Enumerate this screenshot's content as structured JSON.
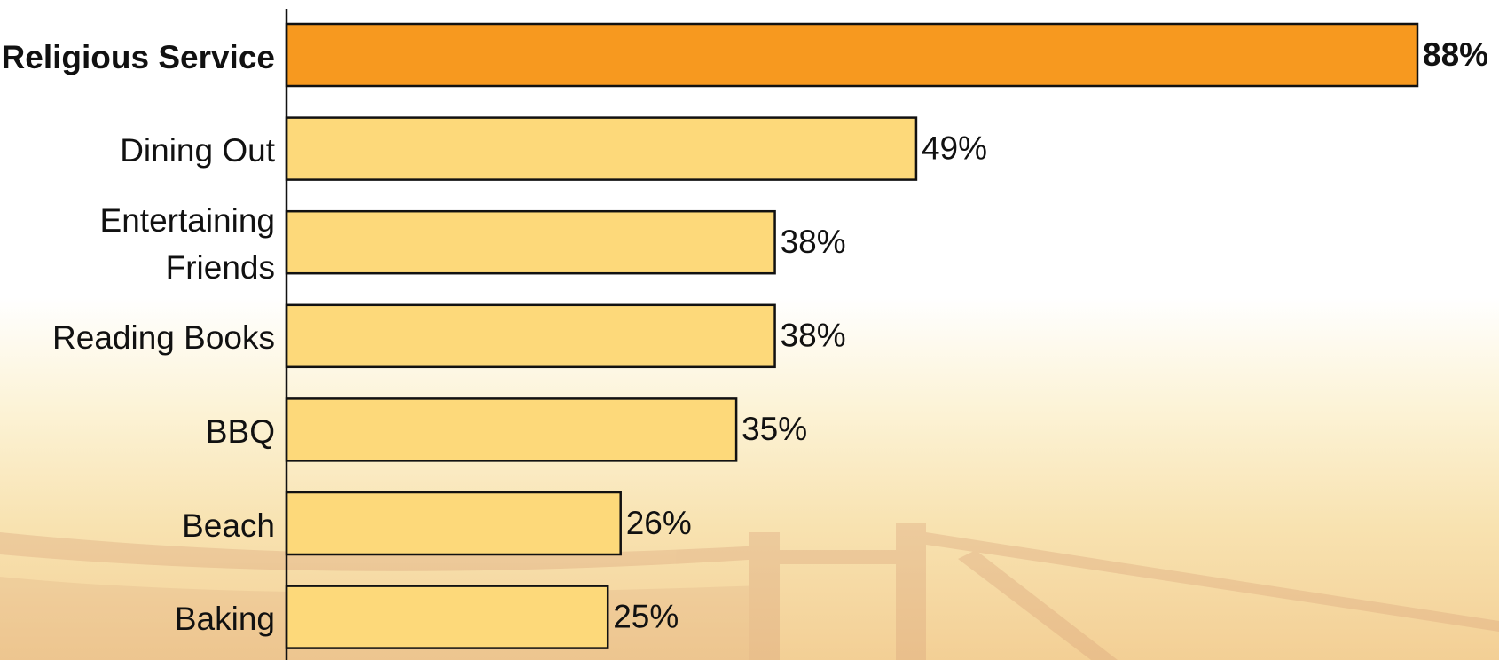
{
  "chart_data": {
    "type": "bar",
    "orientation": "horizontal",
    "categories": [
      "Religious Service",
      "Dining Out",
      "Entertaining Friends",
      "Reading Books",
      "BBQ",
      "Beach",
      "Baking"
    ],
    "values": [
      88,
      49,
      38,
      38,
      35,
      26,
      25
    ],
    "value_labels": [
      "88%",
      "49%",
      "38%",
      "38%",
      "35%",
      "26%",
      "25%"
    ],
    "colors": [
      "#f7991f",
      "#fdd97a",
      "#fdd97a",
      "#fdd97a",
      "#fdd97a",
      "#fdd97a",
      "#fdd97a"
    ]
  }
}
